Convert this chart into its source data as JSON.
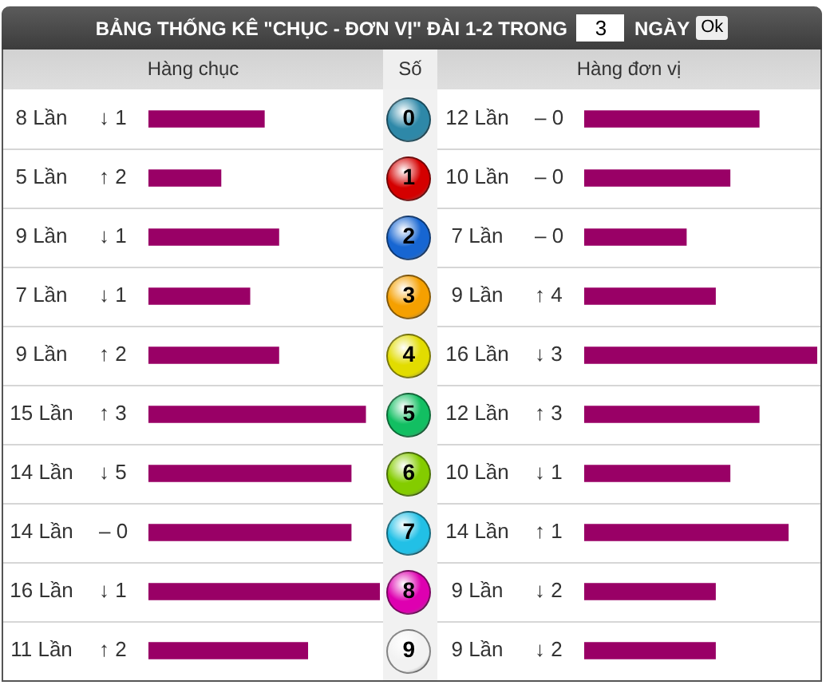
{
  "chart_data": [
    {
      "type": "other",
      "title": "BẢNG THỐNG KÊ \"CHỤC - ĐƠN VỊ\" ĐÀI 1-2 TRONG",
      "annotations": [
        "3",
        "NGÀY",
        "Ok"
      ]
    },
    {
      "type": "bar",
      "orientation": "horizontal",
      "title": "Hàng chục",
      "categories": [
        "0",
        "1",
        "2",
        "3",
        "4",
        "5",
        "6",
        "7",
        "8",
        "9"
      ],
      "values": [
        8,
        5,
        9,
        7,
        9,
        15,
        14,
        14,
        16,
        11
      ],
      "value_labels": [
        "8 Lần",
        "5 Lần",
        "9 Lần",
        "7 Lần",
        "9 Lần",
        "15 Lần",
        "14 Lần",
        "14 Lần",
        "16 Lần",
        "11 Lần"
      ],
      "color": "#990066",
      "grid": "y",
      "tick_labels": false,
      "annotations": [
        "↓ 1",
        "↑ 2",
        "↓ 1",
        "↓ 1",
        "↑ 2",
        "↑ 3",
        "↓ 5",
        "– 0",
        "↓ 1",
        "↑ 2"
      ]
    },
    {
      "type": "bar",
      "orientation": "horizontal",
      "title": "Hàng đơn vị",
      "ylabel": "Số",
      "categories": [
        "0",
        "1",
        "2",
        "3",
        "4",
        "5",
        "6",
        "7",
        "8",
        "9"
      ],
      "values": [
        12,
        10,
        7,
        9,
        16,
        12,
        10,
        14,
        9,
        9
      ],
      "value_labels": [
        "12 Lần",
        "10 Lần",
        "7 Lần",
        "9 Lần",
        "16 Lần",
        "12 Lần",
        "10 Lần",
        "14 Lần",
        "9 Lần",
        "9 Lần"
      ],
      "color": "#990066",
      "grid": "y",
      "tick_labels": "y",
      "annotations": [
        "– 0",
        "– 0",
        "– 0",
        "↑ 4",
        "↓ 3",
        "↑ 3",
        "↓ 1",
        "↑ 1",
        "↓ 2",
        "↓ 2"
      ]
    }
  ]
}
